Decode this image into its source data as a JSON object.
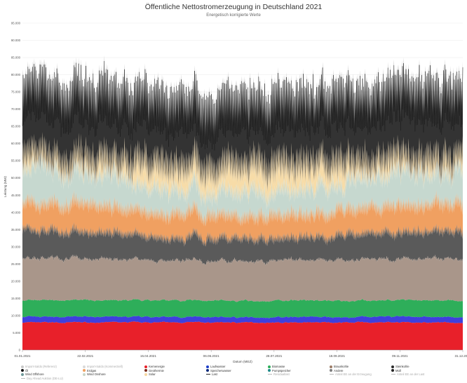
{
  "chart_data": {
    "type": "area",
    "title": "Öffentliche Nettostromerzeugung in Deutschland 2021",
    "subtitle": "Energetisch korrigierte Werte",
    "xlabel": "Datum (MEZ)",
    "ylabel": "Leistung (MW)",
    "ylim": [
      0,
      95000
    ],
    "yticks": [
      "0",
      "5.000",
      "10.000",
      "15.000",
      "20.000",
      "25.000",
      "30.000",
      "35.000",
      "40.000",
      "45.000",
      "50.000",
      "55.000",
      "60.000",
      "65.000",
      "70.000",
      "75.000",
      "80.000",
      "85.000",
      "90.000",
      "95.000"
    ],
    "xticks": [
      "01.01.2021",
      "22.02.2021",
      "15.04.2021",
      "06.06.2021",
      "28.07.2021",
      "18.09.2021",
      "09.11.2021",
      "31.12.2021"
    ],
    "x_range": [
      "01.01.2021",
      "31.12.2021"
    ],
    "grid": true,
    "legend_position": "bottom",
    "series_levels": [
      {
        "name": "Kernenergie",
        "approx_mw": 8000
      },
      {
        "name": "Laufwasser",
        "approx_mw": 1800
      },
      {
        "name": "Biomasse",
        "approx_mw": 4500
      },
      {
        "name": "Braunkohle",
        "approx_mw": 13000
      },
      {
        "name": "Steinkohle",
        "approx_mw": 6000
      },
      {
        "name": "Erdgas",
        "approx_mw": 7000
      },
      {
        "name": "Wind Onshore",
        "approx_mw": 9000
      },
      {
        "name": "Solar",
        "approx_mw": 5500
      }
    ],
    "legend": [
      {
        "name": "Import-Saldo (Referenz)",
        "color": "#c8c8c8",
        "marker": "dot",
        "faded": true
      },
      {
        "name": "Import-Saldo (Kommerziell)",
        "color": "#d9d9d9",
        "marker": "dot",
        "faded": true
      },
      {
        "name": "Kernenergie",
        "color": "#e8202a",
        "marker": "dot"
      },
      {
        "name": "Laufwasser",
        "color": "#1f3fc9",
        "marker": "dot"
      },
      {
        "name": "Biomasse",
        "color": "#2eae5a",
        "marker": "dot"
      },
      {
        "name": "Braunkohle",
        "color": "#9c7b66",
        "marker": "dot"
      },
      {
        "name": "Steinkohle",
        "color": "#2b2b2b",
        "marker": "dot"
      },
      {
        "name": "Öl",
        "color": "#111111",
        "marker": "dot"
      },
      {
        "name": "Erdgas",
        "color": "#f0a061",
        "marker": "dot"
      },
      {
        "name": "Geothermie",
        "color": "#7a2a1a",
        "marker": "dot"
      },
      {
        "name": "Speicherwasser",
        "color": "#0b2a7a",
        "marker": "dot"
      },
      {
        "name": "Pumpspeicher",
        "color": "#1f8a8a",
        "marker": "dot"
      },
      {
        "name": "Andere",
        "color": "#7d7d7d",
        "marker": "dot"
      },
      {
        "name": "Müll",
        "color": "#222222",
        "marker": "dot"
      },
      {
        "name": "Wind Offshore",
        "color": "#6f9a9a",
        "marker": "dot"
      },
      {
        "name": "Wind Onshore",
        "color": "#c8d6c8",
        "marker": "dot"
      },
      {
        "name": "Solar",
        "color": "#f6d7a0",
        "marker": "dot"
      },
      {
        "name": "Last",
        "color": "#2a2a2a",
        "marker": "line"
      },
      {
        "name": "Residuallast",
        "color": "#bbbbbb",
        "marker": "line",
        "faded": true
      },
      {
        "name": "Anteil EE an der Erzeugung",
        "color": "#bbbbbb",
        "marker": "line",
        "faded": true
      },
      {
        "name": "Anteil EE an der Last",
        "color": "#bbbbbb",
        "marker": "line",
        "faded": true
      },
      {
        "name": "Day Ahead Auktion (DE-LU)",
        "color": "#bbbbbb",
        "marker": "line",
        "faded": true
      }
    ]
  }
}
